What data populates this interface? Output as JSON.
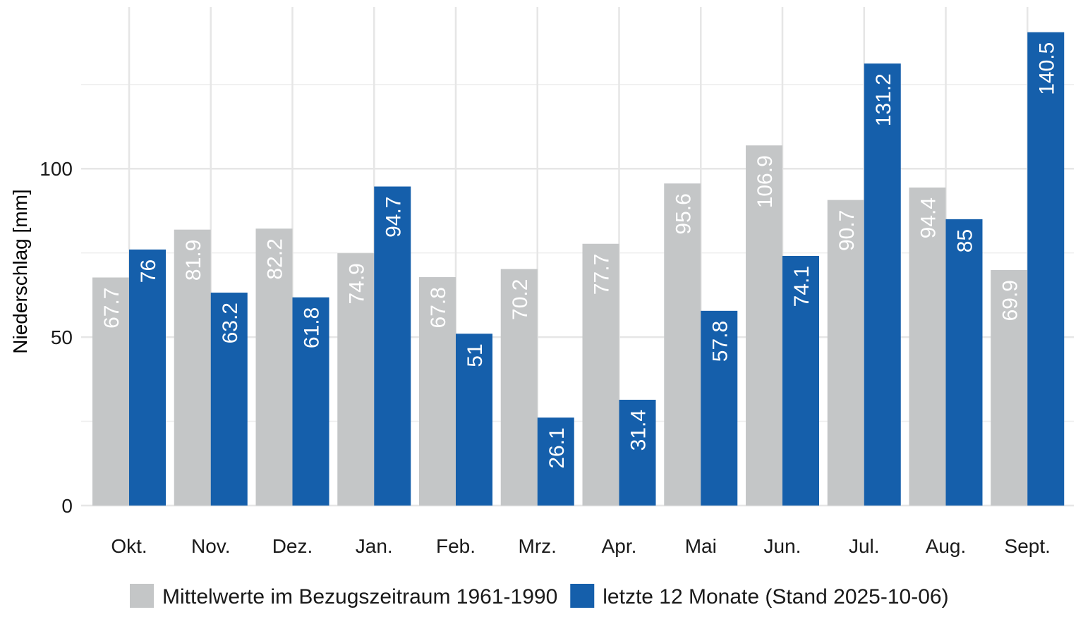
{
  "chart_data": {
    "type": "bar",
    "title": "",
    "xlabel": "",
    "ylabel": "Niederschlag [mm]",
    "categories": [
      "Okt.",
      "Nov.",
      "Dez.",
      "Jan.",
      "Feb.",
      "Mrz.",
      "Apr.",
      "Mai",
      "Jun.",
      "Jul.",
      "Aug.",
      "Sept."
    ],
    "series": [
      {
        "name": "Mittelwerte im Bezugszeitraum 1961-1990",
        "color": "#c4c6c7",
        "values": [
          67.7,
          81.9,
          82.2,
          74.9,
          67.8,
          70.2,
          77.7,
          95.6,
          106.9,
          90.7,
          94.4,
          69.9
        ],
        "labels": [
          "67.7",
          "81.9",
          "82.2",
          "74.9",
          "67.8",
          "70.2",
          "77.7",
          "95.6",
          "106.9",
          "90.7",
          "94.4",
          "69.9"
        ]
      },
      {
        "name": "letzte 12 Monate (Stand 2025-10-06)",
        "color": "#155fab",
        "values": [
          76,
          63.2,
          61.8,
          94.7,
          51,
          26.1,
          31.4,
          57.8,
          74.1,
          131.2,
          85,
          140.5
        ],
        "labels": [
          "76",
          "63.2",
          "61.8",
          "94.7",
          "51",
          "26.1",
          "31.4",
          "57.8",
          "74.1",
          "131.2",
          "85",
          "140.5"
        ]
      }
    ],
    "y_ticks": [
      0,
      50,
      100
    ],
    "y_tick_labels": [
      "0",
      "50",
      "100"
    ],
    "ylim": [
      0,
      142
    ],
    "grid": true,
    "legend_position": "bottom"
  }
}
